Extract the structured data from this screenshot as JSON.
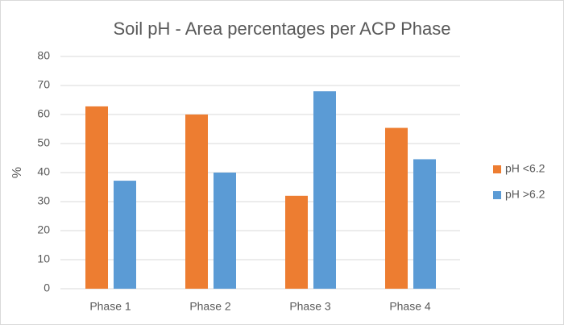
{
  "chart_data": {
    "type": "bar",
    "title": "Soil pH - Area percentages per ACP Phase",
    "y_label": "%",
    "categories": [
      "Phase 1",
      "Phase 2",
      "Phase 3",
      "Phase 4"
    ],
    "series": [
      {
        "name": "pH <6.2",
        "color": "#ed7d31",
        "values": [
          62.8,
          60,
          32,
          55.4
        ]
      },
      {
        "name": "pH >6.2",
        "color": "#5b9bd5",
        "values": [
          37.2,
          40,
          68,
          44.6
        ]
      }
    ],
    "ylim": [
      0,
      80
    ],
    "yticks": [
      0,
      10,
      20,
      30,
      40,
      50,
      60,
      70,
      80
    ],
    "grid": true,
    "legend": "right"
  }
}
